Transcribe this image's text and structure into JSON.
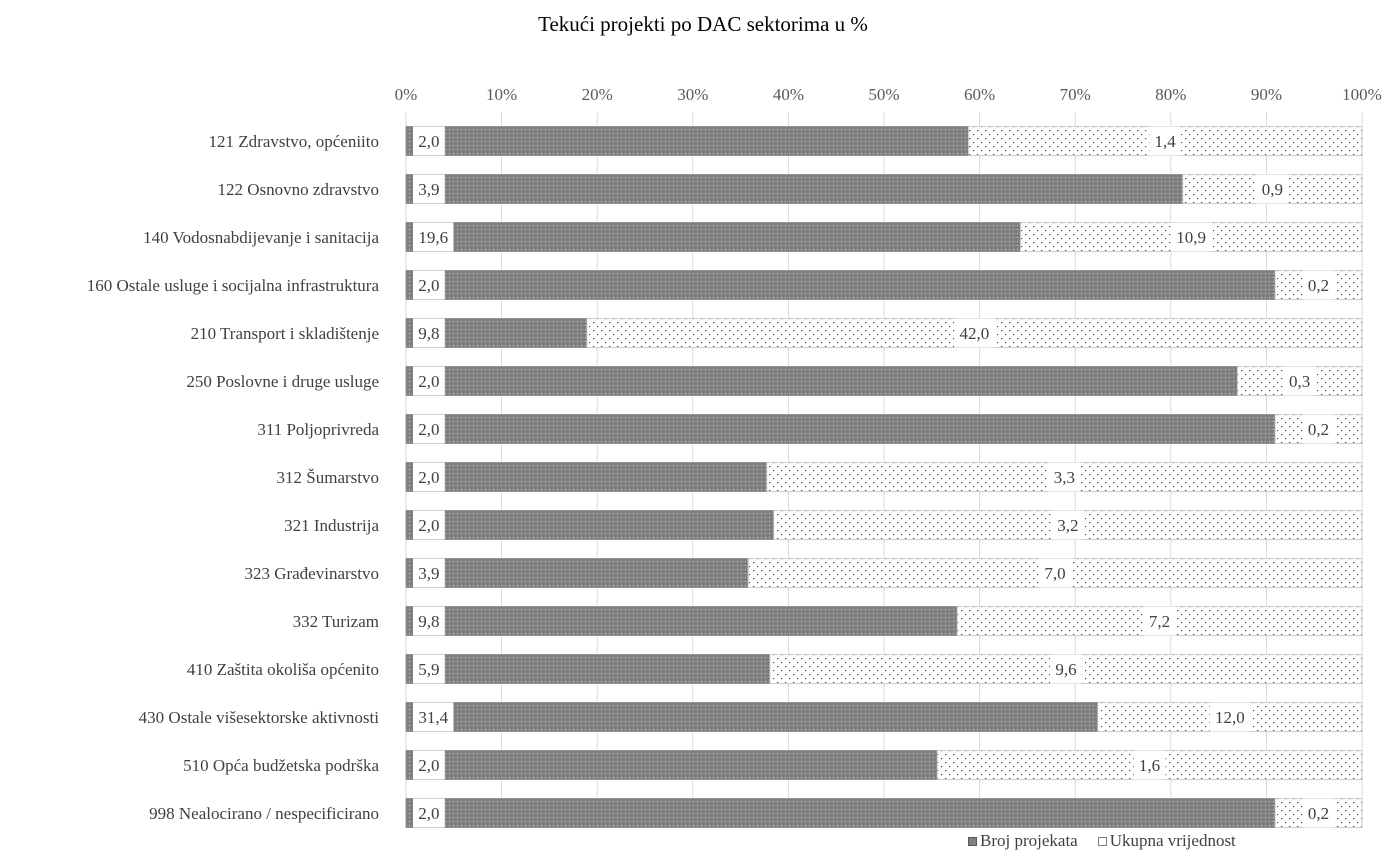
{
  "chart_data": {
    "type": "bar",
    "orientation": "horizontal",
    "stacked": "100%",
    "title": "Tekući projekti po DAC sektorima u %",
    "xlim": [
      0,
      100
    ],
    "x_ticks": [
      "0%",
      "10%",
      "20%",
      "30%",
      "40%",
      "50%",
      "60%",
      "70%",
      "80%",
      "90%",
      "100%"
    ],
    "grid": true,
    "legend_position": "bottom-right",
    "categories": [
      "121 Zdravstvo, općeniito",
      "122 Osnovno zdravstvo",
      "140 Vodosnabdijevanje i sanitacija",
      "160 Ostale usluge i socijalna infrastruktura",
      "210 Transport i skladištenje",
      "250 Poslovne i druge usluge",
      "311 Poljoprivreda",
      "312 Šumarstvo",
      "321 Industrija",
      "323 Građevinarstvo",
      "332 Turizam",
      "410 Zaštita okoliša općenito",
      "430 Ostale višesektorske aktivnosti",
      "510 Opća budžetska podrška",
      "998 Nealocirano / nespecificirano"
    ],
    "series": [
      {
        "name": "Broj projekata",
        "color": "#7f7f7f",
        "values": [
          2.0,
          3.9,
          19.6,
          2.0,
          9.8,
          2.0,
          2.0,
          2.0,
          2.0,
          3.9,
          9.8,
          5.9,
          31.4,
          2.0,
          2.0
        ],
        "labels": [
          "2,0",
          "3,9",
          "19,6",
          "2,0",
          "9,8",
          "2,0",
          "2,0",
          "2,0",
          "2,0",
          "3,9",
          "9,8",
          "5,9",
          "31,4",
          "2,0",
          "2,0"
        ]
      },
      {
        "name": "Ukupna vrijednost",
        "color": "#ffffff",
        "values": [
          1.4,
          0.9,
          10.9,
          0.2,
          42.0,
          0.3,
          0.2,
          3.3,
          3.2,
          7.0,
          7.2,
          9.6,
          12.0,
          1.6,
          0.2
        ],
        "labels": [
          "1,4",
          "0,9",
          "10,9",
          "0,2",
          "42,0",
          "0,3",
          "0,2",
          "3,3",
          "3,2",
          "7,0",
          "7,2",
          "9,6",
          "12,0",
          "1,6",
          "0,2"
        ]
      }
    ]
  }
}
